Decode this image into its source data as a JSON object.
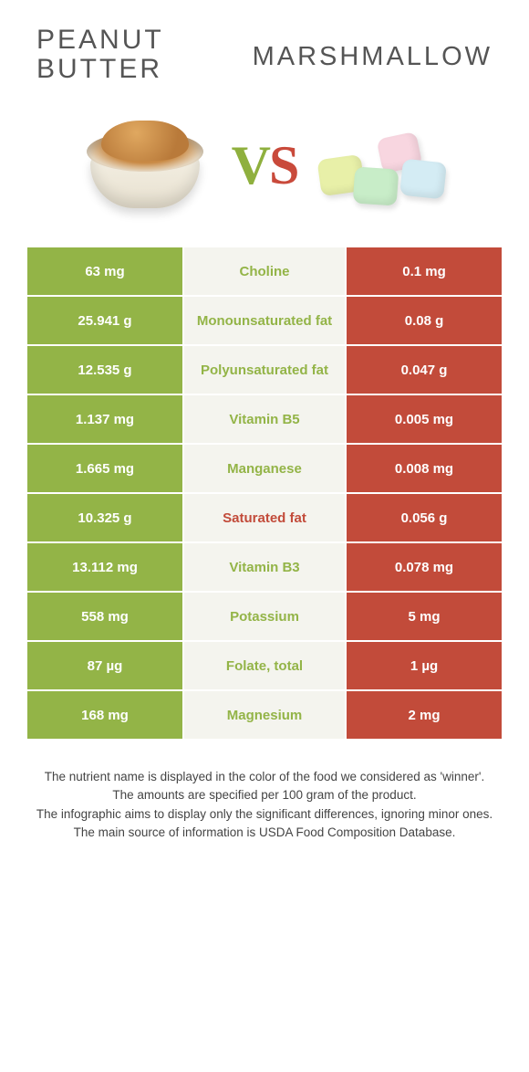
{
  "header": {
    "left_title_line1": "Peanut",
    "left_title_line2": "butter",
    "right_title": "Marshmallow",
    "vs_v": "V",
    "vs_s": "S"
  },
  "colors": {
    "left": "#93b447",
    "right": "#c24b3a",
    "mid_bg": "#f4f4ee",
    "mid_text_left": "#93b447",
    "mid_text_right": "#c24b3a"
  },
  "rows": [
    {
      "left": "63 mg",
      "label": "Choline",
      "right": "0.1 mg",
      "winner": "left"
    },
    {
      "left": "25.941 g",
      "label": "Monounsaturated fat",
      "right": "0.08 g",
      "winner": "left"
    },
    {
      "left": "12.535 g",
      "label": "Polyunsaturated fat",
      "right": "0.047 g",
      "winner": "left"
    },
    {
      "left": "1.137 mg",
      "label": "Vitamin B5",
      "right": "0.005 mg",
      "winner": "left"
    },
    {
      "left": "1.665 mg",
      "label": "Manganese",
      "right": "0.008 mg",
      "winner": "left"
    },
    {
      "left": "10.325 g",
      "label": "Saturated fat",
      "right": "0.056 g",
      "winner": "right"
    },
    {
      "left": "13.112 mg",
      "label": "Vitamin B3",
      "right": "0.078 mg",
      "winner": "left"
    },
    {
      "left": "558 mg",
      "label": "Potassium",
      "right": "5 mg",
      "winner": "left"
    },
    {
      "left": "87 µg",
      "label": "Folate, total",
      "right": "1 µg",
      "winner": "left"
    },
    {
      "left": "168 mg",
      "label": "Magnesium",
      "right": "2 mg",
      "winner": "left"
    }
  ],
  "footer": {
    "line1": "The nutrient name is displayed in the color of the food we considered as 'winner'.",
    "line2": "The amounts are specified per 100 gram of the product.",
    "line3": "The infographic aims to display only the significant differences, ignoring minor ones.",
    "line4": "The main source of information is USDA Food Composition Database."
  }
}
